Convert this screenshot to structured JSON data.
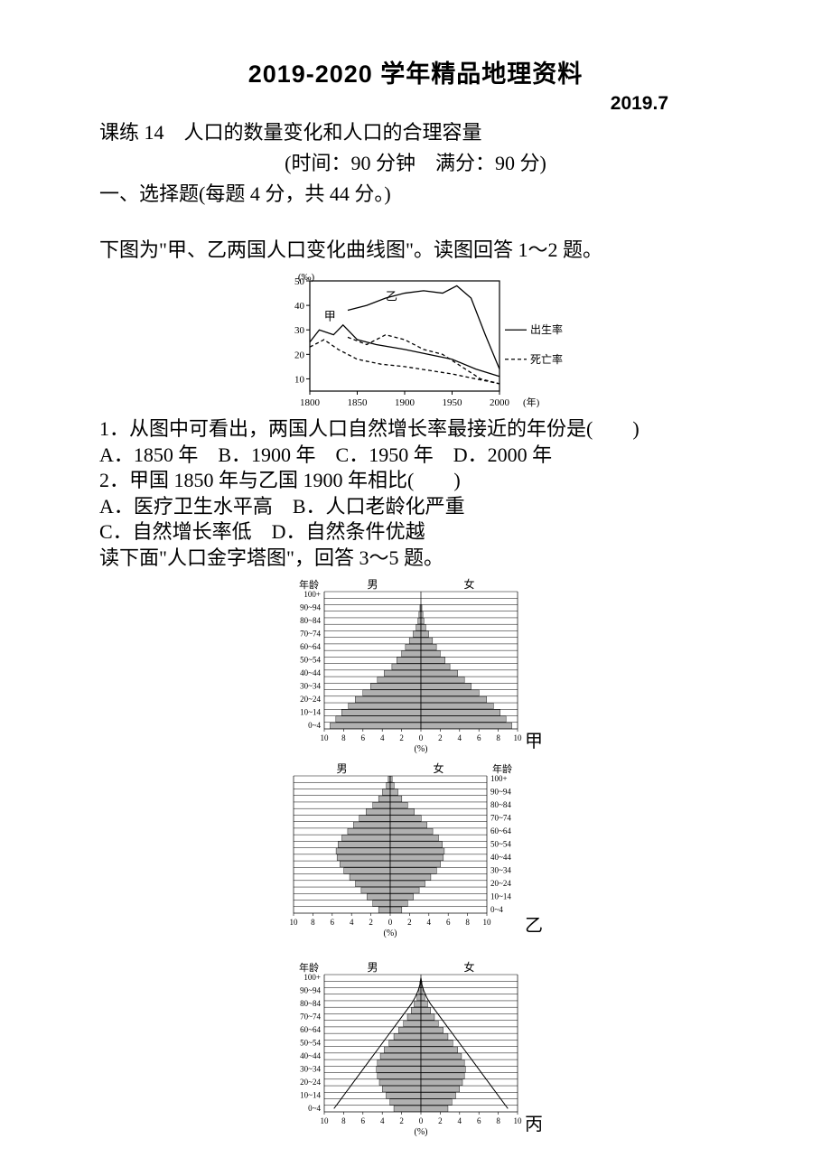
{
  "header": {
    "title": "2019-2020 学年精品地理资料",
    "date": "2019.7"
  },
  "lesson": "课练 14　人口的数量变化和人口的合理容量",
  "timing": "(时间：90 分钟　满分：90 分)",
  "section1": "一、选择题(每题 4 分，共 44 分。)",
  "intro1": "下图为\"甲、乙两国人口变化曲线图\"。读图回答 1～2 题。",
  "line_chart": {
    "type": "line",
    "y_unit": "(‰)",
    "x_unit": "(年)",
    "x_ticks": [
      1800,
      1850,
      1900,
      1950,
      2000
    ],
    "y_ticks": [
      10,
      20,
      30,
      40,
      50
    ],
    "xlim": [
      1800,
      2000
    ],
    "ylim": [
      5,
      50
    ],
    "label_jia": "甲",
    "label_yi": "乙",
    "legend_birth": "出生率",
    "legend_death": "死亡率",
    "birth_style": "solid",
    "death_style": "dashed",
    "line_color": "#000000",
    "bg_color": "#ffffff",
    "jia_birth": [
      [
        1800,
        25
      ],
      [
        1810,
        30
      ],
      [
        1825,
        28
      ],
      [
        1835,
        32
      ],
      [
        1850,
        26
      ],
      [
        1870,
        24
      ],
      [
        1900,
        22
      ],
      [
        1950,
        18
      ],
      [
        1975,
        14
      ],
      [
        2000,
        11
      ]
    ],
    "jia_death": [
      [
        1800,
        23
      ],
      [
        1815,
        26
      ],
      [
        1830,
        22
      ],
      [
        1850,
        18
      ],
      [
        1875,
        16
      ],
      [
        1900,
        15
      ],
      [
        1950,
        12
      ],
      [
        1975,
        10
      ],
      [
        2000,
        8
      ]
    ],
    "yi_birth": [
      [
        1840,
        38
      ],
      [
        1860,
        40
      ],
      [
        1880,
        43
      ],
      [
        1900,
        45
      ],
      [
        1920,
        46
      ],
      [
        1940,
        45
      ],
      [
        1955,
        48
      ],
      [
        1970,
        43
      ],
      [
        1985,
        28
      ],
      [
        2000,
        14
      ]
    ],
    "yi_death": [
      [
        1840,
        27
      ],
      [
        1860,
        24
      ],
      [
        1880,
        28
      ],
      [
        1900,
        26
      ],
      [
        1920,
        22
      ],
      [
        1940,
        20
      ],
      [
        1960,
        15
      ],
      [
        1980,
        10
      ],
      [
        2000,
        8
      ]
    ]
  },
  "q1": "1．从图中可看出，两国人口自然增长率最接近的年份是(　　)",
  "q1_opts": "A．1850 年　B．1900 年　C．1950 年　D．2000 年",
  "q2": "2．甲国 1850 年与乙国 1900 年相比(　　)",
  "q2_optsA": "A．医疗卫生水平高　B．人口老龄化严重",
  "q2_optsB": "C．自然增长率低　D．自然条件优越",
  "intro2": "读下面\"人口金字塔图\"，回答 3～5 题。",
  "pyramid_common": {
    "age_label": "年龄",
    "male_label": "男",
    "female_label": "女",
    "x_unit": "(%)",
    "x_ticks_left": [
      10,
      8,
      6,
      4,
      2,
      0
    ],
    "x_ticks_right": [
      2,
      4,
      6,
      8,
      10
    ],
    "age_groups": [
      "100+",
      "",
      "90~94",
      "",
      "80~84",
      "",
      "70~74",
      "",
      "60~64",
      "",
      "50~54",
      "",
      "40~44",
      "",
      "30~34",
      "",
      "20~24",
      "",
      "10~14",
      "",
      "0~4"
    ],
    "bar_color": "#b0b0b0",
    "grid_color": "#000000"
  },
  "pyramid_jia": {
    "label": "甲",
    "male": [
      0.0,
      0.0,
      0.1,
      0.2,
      0.3,
      0.5,
      0.8,
      1.2,
      1.6,
      2.0,
      2.5,
      3.0,
      3.8,
      4.5,
      5.2,
      6.0,
      6.8,
      7.5,
      8.2,
      8.8,
      9.4
    ],
    "female": [
      0.0,
      0.0,
      0.1,
      0.2,
      0.3,
      0.5,
      0.8,
      1.2,
      1.6,
      2.0,
      2.5,
      3.0,
      3.8,
      4.5,
      5.2,
      6.0,
      6.8,
      7.5,
      8.2,
      8.8,
      9.4
    ]
  },
  "pyramid_yi": {
    "label": "乙",
    "male": [
      0.2,
      0.4,
      0.8,
      1.2,
      1.8,
      2.5,
      3.2,
      3.8,
      4.4,
      5.0,
      5.4,
      5.6,
      5.5,
      5.2,
      4.8,
      4.2,
      3.6,
      3.0,
      2.4,
      1.8,
      1.2
    ],
    "female": [
      0.2,
      0.4,
      0.8,
      1.2,
      1.8,
      2.5,
      3.2,
      3.8,
      4.4,
      5.0,
      5.4,
      5.6,
      5.5,
      5.2,
      4.8,
      4.2,
      3.6,
      3.0,
      2.4,
      1.8,
      1.2
    ]
  },
  "pyramid_bing": {
    "label": "丙",
    "male": [
      0.0,
      0.1,
      0.2,
      0.4,
      0.7,
      1.0,
      1.4,
      1.8,
      2.3,
      2.8,
      3.3,
      3.8,
      4.2,
      4.5,
      4.6,
      4.5,
      4.3,
      4.0,
      3.6,
      3.2,
      2.8
    ],
    "female": [
      0.0,
      0.1,
      0.2,
      0.4,
      0.7,
      1.0,
      1.4,
      1.8,
      2.3,
      2.8,
      3.3,
      3.8,
      4.2,
      4.5,
      4.6,
      4.5,
      4.3,
      4.0,
      3.6,
      3.2,
      2.8
    ],
    "outline_male": [
      0.0,
      0.1,
      0.3,
      0.6,
      1.0,
      1.5,
      2.0,
      2.5,
      3.0,
      3.5,
      4.0,
      4.5,
      5.0,
      5.5,
      6.0,
      6.5,
      7.0,
      7.5,
      8.0,
      8.5,
      9.0
    ],
    "outline_female": [
      0.0,
      0.1,
      0.3,
      0.6,
      1.0,
      1.5,
      2.0,
      2.5,
      3.0,
      3.5,
      4.0,
      4.5,
      5.0,
      5.5,
      6.0,
      6.5,
      7.0,
      7.5,
      8.0,
      8.5,
      9.0
    ]
  }
}
